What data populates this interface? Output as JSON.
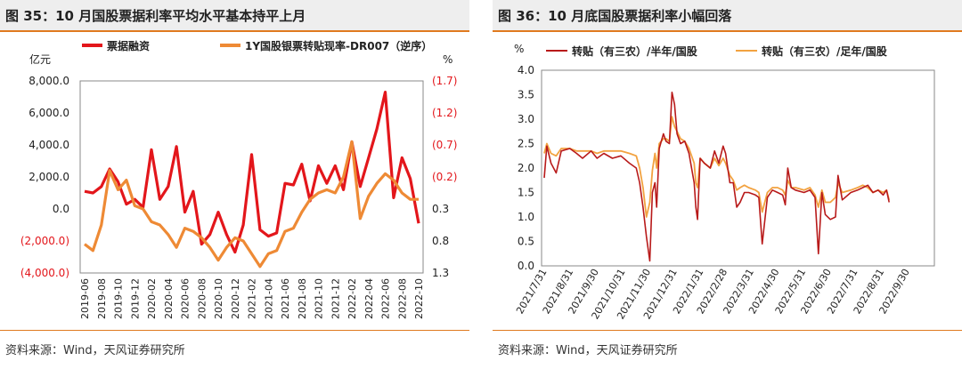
{
  "left_panel": {
    "title": "图 35：10 月国股票据利率平均水平基本持平上月",
    "source": "资料来源：Wind，天风证券研究所"
  },
  "right_panel": {
    "title": "图 36：10 月底国股票据利率小幅回落",
    "source": "资料来源：Wind，天风证券研究所"
  },
  "colors": {
    "red": "#e3161b",
    "orange": "#ee8a35",
    "dark_red": "#b81a1a",
    "light_orange": "#f2a240",
    "accent": "#e07a1f",
    "title_bg": "#eeeeee"
  },
  "chart_data": [
    {
      "type": "line",
      "ylabel_left": "亿元",
      "ylabel_right": "%",
      "left_ticks": [
        "8,000.0",
        "6,000.0",
        "4,000.0",
        "2,000.0",
        "0.0",
        "(2,000.0)",
        "(4,000.0)"
      ],
      "right_ticks": [
        "(1.7)",
        "(1.2)",
        "(0.7)",
        "(0.2)",
        "0.3",
        "0.8",
        "1.3"
      ],
      "ylim_left": [
        -4000,
        8000
      ],
      "ylim_right": [
        -1.7,
        1.3
      ],
      "right_axis_inverted": true,
      "categories": [
        "2019-06",
        "2019-07",
        "2019-08",
        "2019-09",
        "2019-10",
        "2019-11",
        "2019-12",
        "2020-01",
        "2020-02",
        "2020-03",
        "2020-04",
        "2020-05",
        "2020-06",
        "2020-07",
        "2020-08",
        "2020-09",
        "2020-10",
        "2020-11",
        "2020-12",
        "2021-01",
        "2021-02",
        "2021-03",
        "2021-04",
        "2021-05",
        "2021-06",
        "2021-07",
        "2021-08",
        "2021-09",
        "2021-10",
        "2021-11",
        "2021-12",
        "2022-01",
        "2022-02",
        "2022-03",
        "2022-04",
        "2022-05",
        "2022-06",
        "2022-07",
        "2022-08",
        "2022-09",
        "2022-10"
      ],
      "x_tick_labels": [
        "2019-06",
        "2019-08",
        "2019-10",
        "2019-12",
        "2020-02",
        "2020-04",
        "2020-06",
        "2020-08",
        "2020-10",
        "2020-12",
        "2021-02",
        "2021-04",
        "2021-06",
        "2021-08",
        "2021-10",
        "2021-12",
        "2022-02",
        "2022-04",
        "2022-06",
        "2022-08",
        "2022-10"
      ],
      "series": [
        {
          "name": "票据融资",
          "axis": "left",
          "color": "#e3161b",
          "values": [
            1100,
            1000,
            1400,
            2500,
            1700,
            300,
            600,
            100,
            3700,
            600,
            1400,
            3900,
            -200,
            1100,
            -2200,
            -1600,
            -200,
            -1600,
            -2700,
            -1000,
            3400,
            -1300,
            -1700,
            -1500,
            1600,
            1500,
            2800,
            500,
            2700,
            1600,
            2700,
            1200,
            4200,
            1400,
            3200,
            5000,
            7300,
            700,
            3200,
            1900,
            -900
          ]
        },
        {
          "name": "1Y国股银票转贴现率-DR007（逆序）",
          "axis": "right",
          "color": "#ee8a35",
          "values": [
            0.85,
            0.95,
            0.55,
            -0.3,
            0.0,
            -0.15,
            0.25,
            0.3,
            0.5,
            0.55,
            0.7,
            0.9,
            0.6,
            0.65,
            0.75,
            0.9,
            1.1,
            0.9,
            0.75,
            0.8,
            1.0,
            1.2,
            1.0,
            0.95,
            0.65,
            0.6,
            0.35,
            0.15,
            0.05,
            0.0,
            0.05,
            -0.2,
            -0.75,
            0.45,
            0.1,
            -0.1,
            -0.25,
            -0.15,
            0.05,
            0.15,
            0.15
          ]
        }
      ]
    },
    {
      "type": "line",
      "ylabel": "%",
      "ylim": [
        0.0,
        4.0
      ],
      "y_ticks": [
        "4.0",
        "3.5",
        "3.0",
        "2.5",
        "2.0",
        "1.5",
        "1.0",
        "0.5",
        "0.0"
      ],
      "x_tick_labels": [
        "2021/7/31",
        "2021/8/31",
        "2021/9/30",
        "2021/10/31",
        "2021/11/30",
        "2021/12/31",
        "2022/1/31",
        "2022/2/28",
        "2022/3/31",
        "2022/4/30",
        "2022/5/31",
        "2022/6/30",
        "2022/7/31",
        "2022/8/31",
        "2022/9/30"
      ],
      "x_days": [
        0,
        31,
        61,
        92,
        122,
        153,
        184,
        212,
        243,
        273,
        304,
        334,
        365,
        396,
        426
      ],
      "x_range_days": [
        0,
        455
      ],
      "series": [
        {
          "name": "转贴（有三农）/半年/国股",
          "color": "#b81a1a",
          "points": [
            [
              0,
              1.8
            ],
            [
              3,
              2.45
            ],
            [
              8,
              2.1
            ],
            [
              14,
              1.9
            ],
            [
              20,
              2.35
            ],
            [
              30,
              2.4
            ],
            [
              38,
              2.3
            ],
            [
              45,
              2.2
            ],
            [
              55,
              2.35
            ],
            [
              62,
              2.2
            ],
            [
              70,
              2.3
            ],
            [
              80,
              2.2
            ],
            [
              90,
              2.25
            ],
            [
              100,
              2.1
            ],
            [
              108,
              2.0
            ],
            [
              112,
              1.7
            ],
            [
              116,
              1.2
            ],
            [
              120,
              0.6
            ],
            [
              124,
              0.1
            ],
            [
              127,
              1.5
            ],
            [
              130,
              1.7
            ],
            [
              132,
              1.2
            ],
            [
              135,
              2.4
            ],
            [
              140,
              2.7
            ],
            [
              143,
              2.55
            ],
            [
              147,
              2.5
            ],
            [
              150,
              3.55
            ],
            [
              153,
              3.3
            ],
            [
              156,
              2.7
            ],
            [
              160,
              2.5
            ],
            [
              165,
              2.55
            ],
            [
              170,
              2.3
            ],
            [
              176,
              1.7
            ],
            [
              178,
              1.2
            ],
            [
              180,
              0.95
            ],
            [
              183,
              2.2
            ],
            [
              188,
              2.1
            ],
            [
              195,
              2.0
            ],
            [
              200,
              2.35
            ],
            [
              205,
              2.1
            ],
            [
              210,
              2.45
            ],
            [
              213,
              2.3
            ],
            [
              218,
              1.7
            ],
            [
              222,
              1.7
            ],
            [
              226,
              1.2
            ],
            [
              230,
              1.3
            ],
            [
              235,
              1.5
            ],
            [
              240,
              1.5
            ],
            [
              248,
              1.45
            ],
            [
              252,
              1.4
            ],
            [
              256,
              0.45
            ],
            [
              262,
              1.4
            ],
            [
              268,
              1.55
            ],
            [
              274,
              1.5
            ],
            [
              280,
              1.45
            ],
            [
              283,
              1.25
            ],
            [
              286,
              2.0
            ],
            [
              290,
              1.6
            ],
            [
              295,
              1.55
            ],
            [
              305,
              1.5
            ],
            [
              312,
              1.55
            ],
            [
              318,
              1.4
            ],
            [
              322,
              0.25
            ],
            [
              326,
              1.5
            ],
            [
              330,
              1.05
            ],
            [
              336,
              0.95
            ],
            [
              342,
              1.0
            ],
            [
              345,
              1.85
            ],
            [
              350,
              1.35
            ],
            [
              360,
              1.5
            ],
            [
              368,
              1.55
            ],
            [
              374,
              1.6
            ],
            [
              380,
              1.65
            ],
            [
              386,
              1.5
            ],
            [
              392,
              1.55
            ],
            [
              398,
              1.45
            ],
            [
              402,
              1.55
            ],
            [
              405,
              1.3
            ]
          ]
        },
        {
          "name": "转贴（有三农）/足年/国股",
          "color": "#f2a240",
          "points": [
            [
              0,
              2.3
            ],
            [
              3,
              2.5
            ],
            [
              8,
              2.3
            ],
            [
              14,
              2.25
            ],
            [
              20,
              2.4
            ],
            [
              30,
              2.4
            ],
            [
              38,
              2.35
            ],
            [
              45,
              2.35
            ],
            [
              55,
              2.35
            ],
            [
              62,
              2.3
            ],
            [
              70,
              2.35
            ],
            [
              80,
              2.35
            ],
            [
              90,
              2.35
            ],
            [
              100,
              2.3
            ],
            [
              108,
              2.25
            ],
            [
              112,
              2.0
            ],
            [
              116,
              1.6
            ],
            [
              120,
              1.0
            ],
            [
              124,
              1.3
            ],
            [
              127,
              1.95
            ],
            [
              130,
              2.3
            ],
            [
              132,
              2.0
            ],
            [
              135,
              2.5
            ],
            [
              140,
              2.6
            ],
            [
              143,
              2.6
            ],
            [
              147,
              2.55
            ],
            [
              150,
              3.05
            ],
            [
              153,
              2.85
            ],
            [
              156,
              2.75
            ],
            [
              160,
              2.6
            ],
            [
              165,
              2.55
            ],
            [
              170,
              2.4
            ],
            [
              176,
              2.1
            ],
            [
              178,
              1.7
            ],
            [
              180,
              1.6
            ],
            [
              183,
              2.2
            ],
            [
              188,
              2.1
            ],
            [
              195,
              2.0
            ],
            [
              200,
              2.2
            ],
            [
              205,
              2.05
            ],
            [
              210,
              2.2
            ],
            [
              213,
              2.1
            ],
            [
              218,
              1.85
            ],
            [
              222,
              1.75
            ],
            [
              226,
              1.55
            ],
            [
              230,
              1.6
            ],
            [
              235,
              1.65
            ],
            [
              240,
              1.6
            ],
            [
              248,
              1.55
            ],
            [
              252,
              1.5
            ],
            [
              256,
              1.1
            ],
            [
              262,
              1.5
            ],
            [
              268,
              1.6
            ],
            [
              274,
              1.6
            ],
            [
              280,
              1.55
            ],
            [
              283,
              1.45
            ],
            [
              286,
              1.75
            ],
            [
              290,
              1.6
            ],
            [
              295,
              1.6
            ],
            [
              305,
              1.55
            ],
            [
              312,
              1.6
            ],
            [
              318,
              1.45
            ],
            [
              322,
              1.2
            ],
            [
              326,
              1.55
            ],
            [
              330,
              1.3
            ],
            [
              336,
              1.3
            ],
            [
              342,
              1.4
            ],
            [
              345,
              1.7
            ],
            [
              350,
              1.5
            ],
            [
              360,
              1.55
            ],
            [
              368,
              1.6
            ],
            [
              374,
              1.65
            ],
            [
              380,
              1.6
            ],
            [
              386,
              1.5
            ],
            [
              392,
              1.55
            ],
            [
              398,
              1.5
            ],
            [
              402,
              1.55
            ],
            [
              405,
              1.35
            ]
          ]
        }
      ]
    }
  ]
}
